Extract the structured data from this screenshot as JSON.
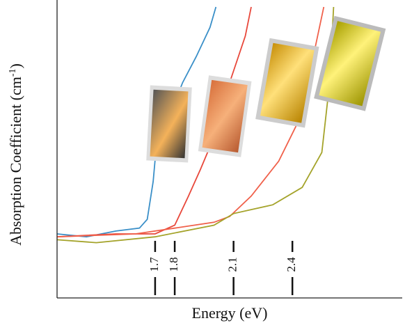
{
  "chart_data": {
    "type": "line",
    "x_label": "Energy (eV)",
    "y_label_parts": [
      "Absorption Coefficient (cm",
      "-1",
      ")"
    ],
    "xlim": [
      1.2,
      2.96
    ],
    "ylim": [
      0,
      100
    ],
    "xticks": [
      1.7,
      1.8,
      2.1,
      2.4
    ],
    "series": [
      {
        "color": "#3a8fc8",
        "x": [
          1.2,
          1.35,
          1.5,
          1.62,
          1.66,
          1.69,
          1.71,
          1.77,
          1.84,
          1.91,
          1.98,
          2.01
        ],
        "values": [
          22,
          21,
          23,
          24,
          27,
          40,
          55,
          62,
          74,
          83,
          93,
          100
        ]
      },
      {
        "color": "#e8473a",
        "x": [
          1.2,
          1.5,
          1.7,
          1.8,
          1.87,
          1.93,
          1.98,
          2.04,
          2.1,
          2.16,
          2.19
        ],
        "values": [
          21,
          22,
          22,
          25,
          35,
          44,
          52,
          66,
          78,
          90,
          100
        ]
      },
      {
        "color": "#f0604a",
        "x": [
          1.2,
          1.6,
          1.8,
          2.0,
          2.08,
          2.19,
          2.33,
          2.44,
          2.5,
          2.56
        ],
        "values": [
          21,
          22,
          24,
          26,
          28,
          35,
          47,
          62,
          81,
          100
        ]
      },
      {
        "color": "#a4a32a",
        "x": [
          1.2,
          1.4,
          1.7,
          2.0,
          2.1,
          2.3,
          2.45,
          2.55,
          2.59,
          2.61
        ],
        "values": [
          20,
          19,
          21,
          25,
          29,
          32,
          38,
          50,
          74,
          100
        ]
      }
    ]
  }
}
